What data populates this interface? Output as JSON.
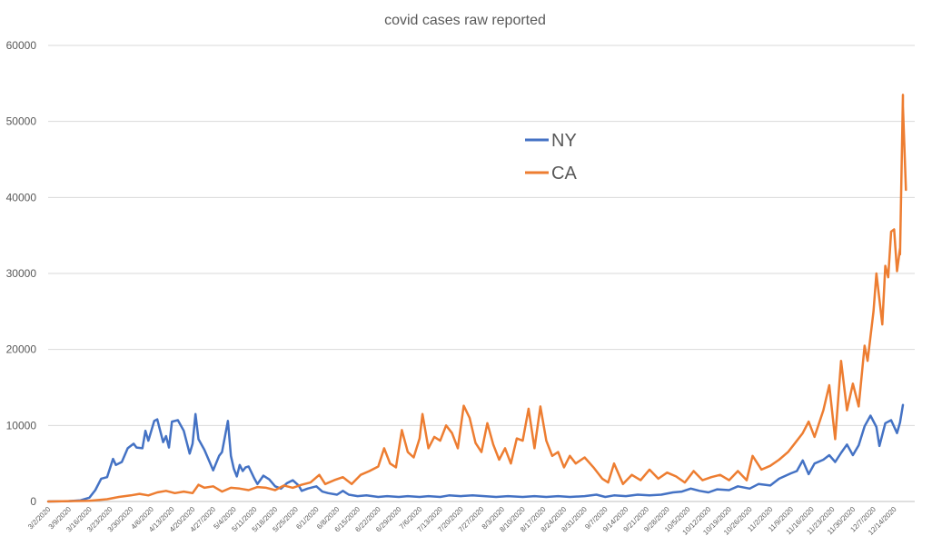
{
  "chart_data": {
    "type": "line",
    "title": "covid cases raw reported",
    "xlabel": "",
    "ylabel": "",
    "ylim": [
      0,
      60000
    ],
    "yticks": [
      "0",
      "10000",
      "20000",
      "30000",
      "40000",
      "50000",
      "60000"
    ],
    "x_start": "3/2/2020",
    "x_end": "12/17/2020",
    "x_tick_labels": [
      "3/2/2020",
      "3/9/2020",
      "3/16/2020",
      "3/23/2020",
      "3/30/2020",
      "4/6/2020",
      "4/13/2020",
      "4/20/2020",
      "4/27/2020",
      "5/4/2020",
      "5/11/2020",
      "5/18/2020",
      "5/25/2020",
      "6/1/2020",
      "6/8/2020",
      "6/15/2020",
      "6/22/2020",
      "6/29/2020",
      "7/6/2020",
      "7/13/2020",
      "7/20/2020",
      "7/27/2020",
      "8/3/2020",
      "8/10/2020",
      "8/17/2020",
      "8/24/2020",
      "8/31/2020",
      "9/7/2020",
      "9/14/2020",
      "9/21/2020",
      "9/28/2020",
      "10/5/2020",
      "10/12/2020",
      "10/19/2020",
      "10/26/2020",
      "11/2/2020",
      "11/9/2020",
      "11/16/2020",
      "11/23/2020",
      "11/30/2020",
      "12/7/2020",
      "12/14/2020"
    ],
    "grid": true,
    "legend_position": "center-right",
    "series": [
      {
        "name": "NY",
        "color": "#4472C4",
        "points": [
          [
            "3/2/2020",
            0
          ],
          [
            "3/9/2020",
            50
          ],
          [
            "3/13/2020",
            150
          ],
          [
            "3/16/2020",
            500
          ],
          [
            "3/18/2020",
            1500
          ],
          [
            "3/20/2020",
            3000
          ],
          [
            "3/22/2020",
            3200
          ],
          [
            "3/24/2020",
            5600
          ],
          [
            "3/25/2020",
            4800
          ],
          [
            "3/27/2020",
            5200
          ],
          [
            "3/29/2020",
            7000
          ],
          [
            "3/31/2020",
            7600
          ],
          [
            "4/1/2020",
            7100
          ],
          [
            "4/3/2020",
            7000
          ],
          [
            "4/4/2020",
            9300
          ],
          [
            "4/5/2020",
            8000
          ],
          [
            "4/7/2020",
            10600
          ],
          [
            "4/8/2020",
            10800
          ],
          [
            "4/10/2020",
            7800
          ],
          [
            "4/11/2020",
            8600
          ],
          [
            "4/12/2020",
            7100
          ],
          [
            "4/13/2020",
            10500
          ],
          [
            "4/15/2020",
            10700
          ],
          [
            "4/17/2020",
            9300
          ],
          [
            "4/19/2020",
            6300
          ],
          [
            "4/20/2020",
            7600
          ],
          [
            "4/21/2020",
            11500
          ],
          [
            "4/22/2020",
            8200
          ],
          [
            "4/24/2020",
            6800
          ],
          [
            "4/26/2020",
            5000
          ],
          [
            "4/27/2020",
            4100
          ],
          [
            "4/29/2020",
            6000
          ],
          [
            "4/30/2020",
            6500
          ],
          [
            "5/2/2020",
            10600
          ],
          [
            "5/3/2020",
            6000
          ],
          [
            "5/4/2020",
            4300
          ],
          [
            "5/5/2020",
            3300
          ],
          [
            "5/6/2020",
            4800
          ],
          [
            "5/7/2020",
            4000
          ],
          [
            "5/8/2020",
            4500
          ],
          [
            "5/9/2020",
            4600
          ],
          [
            "5/11/2020",
            3000
          ],
          [
            "5/12/2020",
            2300
          ],
          [
            "5/14/2020",
            3400
          ],
          [
            "5/16/2020",
            2900
          ],
          [
            "5/18/2020",
            2000
          ],
          [
            "5/20/2020",
            1700
          ],
          [
            "5/22/2020",
            2400
          ],
          [
            "5/24/2020",
            2800
          ],
          [
            "5/26/2020",
            2100
          ],
          [
            "5/27/2020",
            1400
          ],
          [
            "5/29/2020",
            1700
          ],
          [
            "6/1/2020",
            2000
          ],
          [
            "6/3/2020",
            1300
          ],
          [
            "6/5/2020",
            1100
          ],
          [
            "6/8/2020",
            900
          ],
          [
            "6/10/2020",
            1400
          ],
          [
            "6/12/2020",
            900
          ],
          [
            "6/15/2020",
            700
          ],
          [
            "6/18/2020",
            800
          ],
          [
            "6/22/2020",
            600
          ],
          [
            "6/25/2020",
            700
          ],
          [
            "6/29/2020",
            600
          ],
          [
            "7/2/2020",
            700
          ],
          [
            "7/6/2020",
            600
          ],
          [
            "7/9/2020",
            700
          ],
          [
            "7/13/2020",
            600
          ],
          [
            "7/16/2020",
            800
          ],
          [
            "7/20/2020",
            700
          ],
          [
            "7/24/2020",
            800
          ],
          [
            "7/28/2020",
            700
          ],
          [
            "8/1/2020",
            600
          ],
          [
            "8/5/2020",
            700
          ],
          [
            "8/10/2020",
            600
          ],
          [
            "8/14/2020",
            700
          ],
          [
            "8/18/2020",
            600
          ],
          [
            "8/22/2020",
            700
          ],
          [
            "8/26/2020",
            600
          ],
          [
            "8/31/2020",
            700
          ],
          [
            "9/4/2020",
            900
          ],
          [
            "9/7/2020",
            600
          ],
          [
            "9/10/2020",
            800
          ],
          [
            "9/14/2020",
            700
          ],
          [
            "9/18/2020",
            900
          ],
          [
            "9/22/2020",
            800
          ],
          [
            "9/26/2020",
            900
          ],
          [
            "9/30/2020",
            1200
          ],
          [
            "10/3/2020",
            1300
          ],
          [
            "10/6/2020",
            1700
          ],
          [
            "10/9/2020",
            1400
          ],
          [
            "10/12/2020",
            1200
          ],
          [
            "10/15/2020",
            1600
          ],
          [
            "10/19/2020",
            1500
          ],
          [
            "10/22/2020",
            2000
          ],
          [
            "10/26/2020",
            1700
          ],
          [
            "10/29/2020",
            2300
          ],
          [
            "11/2/2020",
            2100
          ],
          [
            "11/5/2020",
            3000
          ],
          [
            "11/9/2020",
            3700
          ],
          [
            "11/11/2020",
            4000
          ],
          [
            "11/13/2020",
            5400
          ],
          [
            "11/15/2020",
            3600
          ],
          [
            "11/17/2020",
            5000
          ],
          [
            "11/20/2020",
            5500
          ],
          [
            "11/22/2020",
            6100
          ],
          [
            "11/24/2020",
            5200
          ],
          [
            "11/26/2020",
            6400
          ],
          [
            "11/28/2020",
            7500
          ],
          [
            "11/30/2020",
            6100
          ],
          [
            "12/2/2020",
            7400
          ],
          [
            "12/4/2020",
            9900
          ],
          [
            "12/6/2020",
            11300
          ],
          [
            "12/8/2020",
            9800
          ],
          [
            "12/9/2020",
            7300
          ],
          [
            "12/11/2020",
            10300
          ],
          [
            "12/13/2020",
            10700
          ],
          [
            "12/15/2020",
            9000
          ],
          [
            "12/16/2020",
            10400
          ],
          [
            "12/17/2020",
            12700
          ]
        ]
      },
      {
        "name": "CA",
        "color": "#ED7D31",
        "points": [
          [
            "3/2/2020",
            0
          ],
          [
            "3/9/2020",
            50
          ],
          [
            "3/16/2020",
            100
          ],
          [
            "3/22/2020",
            300
          ],
          [
            "3/26/2020",
            600
          ],
          [
            "3/30/2020",
            800
          ],
          [
            "4/2/2020",
            1000
          ],
          [
            "4/5/2020",
            800
          ],
          [
            "4/8/2020",
            1200
          ],
          [
            "4/11/2020",
            1400
          ],
          [
            "4/14/2020",
            1100
          ],
          [
            "4/17/2020",
            1300
          ],
          [
            "4/20/2020",
            1100
          ],
          [
            "4/22/2020",
            2200
          ],
          [
            "4/24/2020",
            1800
          ],
          [
            "4/27/2020",
            2000
          ],
          [
            "4/30/2020",
            1300
          ],
          [
            "5/3/2020",
            1800
          ],
          [
            "5/6/2020",
            1700
          ],
          [
            "5/9/2020",
            1500
          ],
          [
            "5/12/2020",
            1900
          ],
          [
            "5/15/2020",
            1800
          ],
          [
            "5/18/2020",
            1500
          ],
          [
            "5/21/2020",
            2100
          ],
          [
            "5/24/2020",
            1800
          ],
          [
            "5/27/2020",
            2200
          ],
          [
            "5/30/2020",
            2500
          ],
          [
            "6/2/2020",
            3500
          ],
          [
            "6/4/2020",
            2300
          ],
          [
            "6/7/2020",
            2800
          ],
          [
            "6/10/2020",
            3200
          ],
          [
            "6/13/2020",
            2300
          ],
          [
            "6/16/2020",
            3500
          ],
          [
            "6/19/2020",
            4000
          ],
          [
            "6/22/2020",
            4600
          ],
          [
            "6/24/2020",
            7000
          ],
          [
            "6/26/2020",
            5000
          ],
          [
            "6/28/2020",
            4500
          ],
          [
            "6/30/2020",
            9400
          ],
          [
            "7/2/2020",
            6500
          ],
          [
            "7/4/2020",
            5800
          ],
          [
            "7/6/2020",
            8300
          ],
          [
            "7/7/2020",
            11500
          ],
          [
            "7/9/2020",
            7000
          ],
          [
            "7/11/2020",
            8500
          ],
          [
            "7/13/2020",
            8000
          ],
          [
            "7/15/2020",
            10000
          ],
          [
            "7/17/2020",
            9000
          ],
          [
            "7/19/2020",
            7000
          ],
          [
            "7/21/2020",
            12600
          ],
          [
            "7/23/2020",
            11000
          ],
          [
            "7/25/2020",
            7700
          ],
          [
            "7/27/2020",
            6500
          ],
          [
            "7/29/2020",
            10300
          ],
          [
            "7/31/2020",
            7500
          ],
          [
            "8/2/2020",
            5500
          ],
          [
            "8/4/2020",
            7000
          ],
          [
            "8/6/2020",
            5000
          ],
          [
            "8/8/2020",
            8300
          ],
          [
            "8/10/2020",
            8000
          ],
          [
            "8/12/2020",
            12200
          ],
          [
            "8/14/2020",
            7000
          ],
          [
            "8/16/2020",
            12500
          ],
          [
            "8/18/2020",
            8000
          ],
          [
            "8/20/2020",
            6000
          ],
          [
            "8/22/2020",
            6500
          ],
          [
            "8/24/2020",
            4500
          ],
          [
            "8/26/2020",
            6000
          ],
          [
            "8/28/2020",
            5000
          ],
          [
            "8/31/2020",
            5800
          ],
          [
            "9/3/2020",
            4500
          ],
          [
            "9/6/2020",
            3000
          ],
          [
            "9/8/2020",
            2500
          ],
          [
            "9/10/2020",
            5000
          ],
          [
            "9/13/2020",
            2300
          ],
          [
            "9/16/2020",
            3500
          ],
          [
            "9/19/2020",
            2800
          ],
          [
            "9/22/2020",
            4200
          ],
          [
            "9/25/2020",
            3000
          ],
          [
            "9/28/2020",
            3800
          ],
          [
            "10/1/2020",
            3300
          ],
          [
            "10/4/2020",
            2500
          ],
          [
            "10/7/2020",
            4000
          ],
          [
            "10/10/2020",
            2800
          ],
          [
            "10/13/2020",
            3200
          ],
          [
            "10/16/2020",
            3500
          ],
          [
            "10/19/2020",
            2800
          ],
          [
            "10/22/2020",
            4000
          ],
          [
            "10/25/2020",
            2800
          ],
          [
            "10/27/2020",
            6000
          ],
          [
            "10/30/2020",
            4200
          ],
          [
            "11/2/2020",
            4700
          ],
          [
            "11/5/2020",
            5500
          ],
          [
            "11/8/2020",
            6500
          ],
          [
            "11/10/2020",
            7500
          ],
          [
            "11/13/2020",
            9000
          ],
          [
            "11/15/2020",
            10500
          ],
          [
            "11/17/2020",
            8500
          ],
          [
            "11/20/2020",
            12000
          ],
          [
            "11/22/2020",
            15300
          ],
          [
            "11/24/2020",
            8200
          ],
          [
            "11/26/2020",
            18500
          ],
          [
            "11/28/2020",
            12000
          ],
          [
            "11/30/2020",
            15500
          ],
          [
            "12/2/2020",
            12500
          ],
          [
            "12/4/2020",
            20500
          ],
          [
            "12/5/2020",
            18500
          ],
          [
            "12/7/2020",
            25000
          ],
          [
            "12/8/2020",
            30000
          ],
          [
            "12/10/2020",
            23300
          ],
          [
            "12/11/2020",
            31000
          ],
          [
            "12/12/2020",
            29500
          ],
          [
            "12/13/2020",
            35500
          ],
          [
            "12/14/2020",
            35800
          ],
          [
            "12/15/2020",
            30300
          ],
          [
            "12/16/2020",
            33300
          ],
          [
            "12/16/2020",
            32500
          ],
          [
            "12/17/2020",
            53500
          ],
          [
            "12/17/2020",
            52000
          ],
          [
            "12/18/2020",
            41000
          ]
        ]
      }
    ]
  }
}
